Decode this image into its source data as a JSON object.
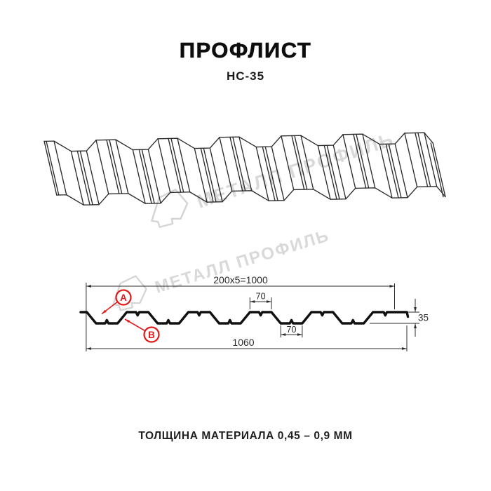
{
  "header": {
    "title": "ПРОФЛИСТ",
    "subtitle": "НС-35"
  },
  "watermark": {
    "brand": "МЕТАЛЛ ПРОФИЛЬ"
  },
  "drawing": {
    "dims": {
      "pitch": "200x5=1000",
      "top_flange": "70",
      "bottom_flange": "70",
      "height": "35",
      "total_width": "1060"
    },
    "markers": {
      "a": "А",
      "b": "В"
    },
    "colors": {
      "accent": "#e11b1b",
      "line": "#2b2b2b",
      "profile": "#111111",
      "watermark_text": "#d9d9d9",
      "watermark_logo": "#d4d4d4"
    }
  },
  "footer": {
    "text": "ТОЛЩИНА МАТЕРИАЛА 0,45 – 0,9 ММ"
  }
}
